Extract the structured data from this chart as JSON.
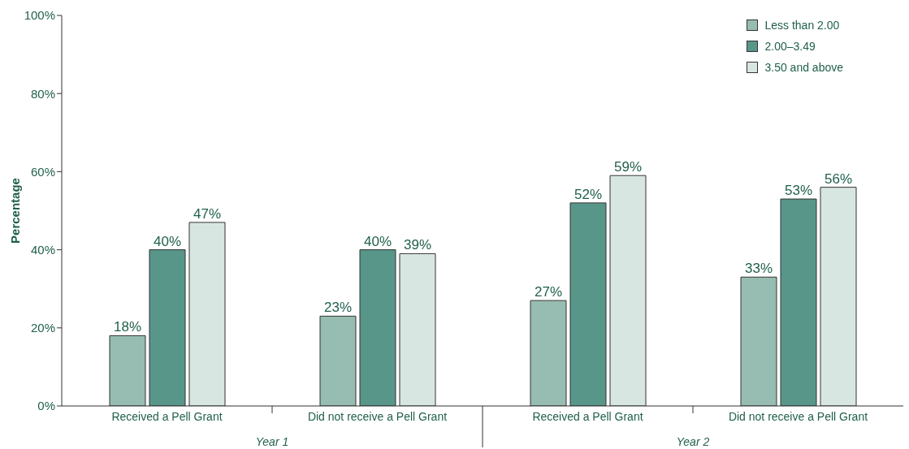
{
  "chart_data": {
    "type": "bar",
    "ylabel": "Percentage",
    "categories": [
      "Received a Pell Grant",
      "Did not receive a Pell Grant",
      "Received a Pell Grant",
      "Did not receive a Pell Grant"
    ],
    "series": [
      {
        "name": "Less than 2.00",
        "color": "#97bcb1",
        "values": [
          18,
          23,
          27,
          33
        ],
        "value_labels": [
          "18%",
          "23%",
          "27%",
          "33%"
        ]
      },
      {
        "name": "2.00–3.49",
        "color": "#58968a",
        "values": [
          40,
          40,
          52,
          53
        ],
        "value_labels": [
          "40%",
          "40%",
          "52%",
          "53%"
        ]
      },
      {
        "name": "3.50 and above",
        "color": "#d8e6e1",
        "values": [
          47,
          39,
          59,
          56
        ],
        "value_labels": [
          "47%",
          "39%",
          "59%",
          "56%"
        ]
      }
    ],
    "ylim": [
      0,
      100
    ],
    "yticks": [
      {
        "value": 0,
        "label": "0%"
      },
      {
        "value": 20,
        "label": "20%"
      },
      {
        "value": 40,
        "label": "40%"
      },
      {
        "value": 60,
        "label": "60%"
      },
      {
        "value": 80,
        "label": "80%"
      },
      {
        "value": 100,
        "label": "100%"
      }
    ],
    "annotations": [
      "Year 1",
      "Year 2"
    ],
    "legend": "top right",
    "grid": false
  }
}
